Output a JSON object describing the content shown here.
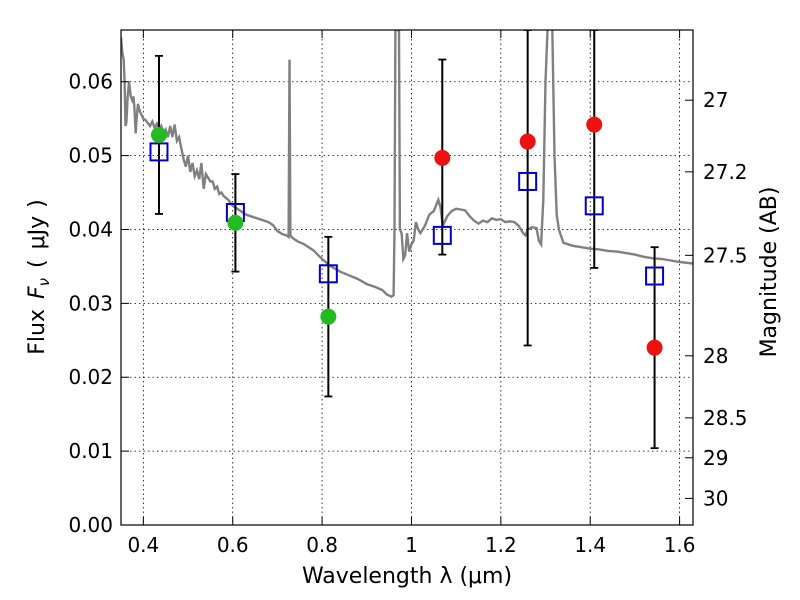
{
  "chart_data": {
    "type": "scatter",
    "xlabel": "Wavelength  λ (μm)",
    "ylabel_parts": [
      "Flux",
      "F",
      "ν",
      "(",
      "μJy",
      ")"
    ],
    "ylabel_right": "Magnitude (AB)",
    "xlim": [
      0.35,
      1.63
    ],
    "ylim": [
      0.0,
      0.067
    ],
    "grid": true,
    "x_ticks": [
      0.4,
      0.6,
      0.8,
      1.0,
      1.2,
      1.4,
      1.6
    ],
    "x_tick_labels": [
      "0.4",
      "0.6",
      "0.8",
      "1",
      "1.2",
      "1.4",
      "1.6"
    ],
    "y_ticks": [
      0.0,
      0.01,
      0.02,
      0.03,
      0.04,
      0.05,
      0.06
    ],
    "y_tick_labels": [
      "0.00",
      "0.01",
      "0.02",
      "0.03",
      "0.04",
      "0.05",
      "0.06"
    ],
    "right_ticks": [
      {
        "flux": 0.0575,
        "label": "27"
      },
      {
        "flux": 0.0478,
        "label": "27.2"
      },
      {
        "flux": 0.0365,
        "label": "27.5"
      },
      {
        "flux": 0.0229,
        "label": "28"
      },
      {
        "flux": 0.0145,
        "label": "28.5"
      },
      {
        "flux": 0.0091,
        "label": "29"
      },
      {
        "flux": 0.0036,
        "label": "30"
      }
    ],
    "series": [
      {
        "role": "model-spectrum",
        "color": "#808080",
        "points": [
          [
            0.35,
            0.066
          ],
          [
            0.353,
            0.064
          ],
          [
            0.356,
            0.063
          ],
          [
            0.358,
            0.06
          ],
          [
            0.36,
            0.054
          ],
          [
            0.362,
            0.0545
          ],
          [
            0.365,
            0.058
          ],
          [
            0.368,
            0.06
          ],
          [
            0.372,
            0.058
          ],
          [
            0.375,
            0.0575
          ],
          [
            0.378,
            0.058
          ],
          [
            0.38,
            0.0565
          ],
          [
            0.383,
            0.053
          ],
          [
            0.385,
            0.055
          ],
          [
            0.388,
            0.057
          ],
          [
            0.392,
            0.056
          ],
          [
            0.396,
            0.0555
          ],
          [
            0.4,
            0.055
          ],
          [
            0.405,
            0.0548
          ],
          [
            0.41,
            0.0544
          ],
          [
            0.415,
            0.054
          ],
          [
            0.42,
            0.0546
          ],
          [
            0.425,
            0.0538
          ],
          [
            0.43,
            0.0543
          ],
          [
            0.435,
            0.0535
          ],
          [
            0.44,
            0.054
          ],
          [
            0.445,
            0.053
          ],
          [
            0.45,
            0.0535
          ],
          [
            0.455,
            0.0525
          ],
          [
            0.46,
            0.054
          ],
          [
            0.465,
            0.0525
          ],
          [
            0.47,
            0.0542
          ],
          [
            0.475,
            0.052
          ],
          [
            0.48,
            0.0525
          ],
          [
            0.485,
            0.051
          ],
          [
            0.49,
            0.0495
          ],
          [
            0.495,
            0.0485
          ],
          [
            0.5,
            0.05
          ],
          [
            0.505,
            0.0478
          ],
          [
            0.51,
            0.049
          ],
          [
            0.515,
            0.0472
          ],
          [
            0.52,
            0.048
          ],
          [
            0.525,
            0.0468
          ],
          [
            0.53,
            0.049
          ],
          [
            0.535,
            0.0455
          ],
          [
            0.54,
            0.0475
          ],
          [
            0.545,
            0.047
          ],
          [
            0.55,
            0.0465
          ],
          [
            0.555,
            0.0465
          ],
          [
            0.56,
            0.0455
          ],
          [
            0.565,
            0.0458
          ],
          [
            0.57,
            0.0448
          ],
          [
            0.575,
            0.045
          ],
          [
            0.58,
            0.0445
          ],
          [
            0.59,
            0.044
          ],
          [
            0.6,
            0.0432
          ],
          [
            0.61,
            0.0428
          ],
          [
            0.62,
            0.0424
          ],
          [
            0.63,
            0.042
          ],
          [
            0.64,
            0.0418
          ],
          [
            0.65,
            0.0416
          ],
          [
            0.66,
            0.0414
          ],
          [
            0.67,
            0.0412
          ],
          [
            0.68,
            0.041
          ],
          [
            0.69,
            0.0406
          ],
          [
            0.7,
            0.0398
          ],
          [
            0.71,
            0.0394
          ],
          [
            0.72,
            0.0392
          ],
          [
            0.725,
            0.039
          ],
          [
            0.727,
            0.063
          ],
          [
            0.729,
            0.0392
          ],
          [
            0.735,
            0.0388
          ],
          [
            0.745,
            0.0384
          ],
          [
            0.76,
            0.038
          ],
          [
            0.78,
            0.0372
          ],
          [
            0.8,
            0.036
          ],
          [
            0.82,
            0.035
          ],
          [
            0.84,
            0.0343
          ],
          [
            0.86,
            0.0338
          ],
          [
            0.88,
            0.0333
          ],
          [
            0.9,
            0.0326
          ],
          [
            0.92,
            0.0322
          ],
          [
            0.935,
            0.0318
          ],
          [
            0.945,
            0.0312
          ],
          [
            0.955,
            0.0309
          ],
          [
            0.96,
            0.0311
          ],
          [
            0.962,
            0.04
          ],
          [
            0.964,
            0.067
          ],
          [
            0.966,
            0.067
          ],
          [
            0.969,
            0.067
          ],
          [
            0.972,
            0.067
          ],
          [
            0.974,
            0.04
          ],
          [
            0.978,
            0.0395
          ],
          [
            0.982,
            0.036
          ],
          [
            0.986,
            0.0365
          ],
          [
            0.99,
            0.0395
          ],
          [
            0.995,
            0.037
          ],
          [
            1.0,
            0.038
          ],
          [
            1.005,
            0.0385
          ],
          [
            1.01,
            0.041
          ],
          [
            1.015,
            0.04
          ],
          [
            1.02,
            0.0395
          ],
          [
            1.03,
            0.0405
          ],
          [
            1.04,
            0.042
          ],
          [
            1.05,
            0.0425
          ],
          [
            1.06,
            0.044
          ],
          [
            1.065,
            0.043
          ],
          [
            1.07,
            0.0405
          ],
          [
            1.08,
            0.0418
          ],
          [
            1.09,
            0.0425
          ],
          [
            1.1,
            0.0428
          ],
          [
            1.11,
            0.0427
          ],
          [
            1.12,
            0.0426
          ],
          [
            1.13,
            0.0418
          ],
          [
            1.14,
            0.0412
          ],
          [
            1.15,
            0.0408
          ],
          [
            1.16,
            0.0412
          ],
          [
            1.17,
            0.041
          ],
          [
            1.18,
            0.0415
          ],
          [
            1.19,
            0.0413
          ],
          [
            1.2,
            0.0414
          ],
          [
            1.21,
            0.041
          ],
          [
            1.22,
            0.0411
          ],
          [
            1.23,
            0.041
          ],
          [
            1.24,
            0.0405
          ],
          [
            1.25,
            0.0395
          ],
          [
            1.255,
            0.0392
          ],
          [
            1.26,
            0.04
          ],
          [
            1.27,
            0.0403
          ],
          [
            1.28,
            0.0402
          ],
          [
            1.285,
            0.0385
          ],
          [
            1.29,
            0.038
          ],
          [
            1.295,
            0.044
          ],
          [
            1.3,
            0.06
          ],
          [
            1.305,
            0.068
          ],
          [
            1.315,
            0.068
          ],
          [
            1.32,
            0.05
          ],
          [
            1.325,
            0.042
          ],
          [
            1.33,
            0.04
          ],
          [
            1.34,
            0.0382
          ],
          [
            1.36,
            0.0378
          ],
          [
            1.38,
            0.0376
          ],
          [
            1.4,
            0.0374
          ],
          [
            1.42,
            0.0373
          ],
          [
            1.44,
            0.0371
          ],
          [
            1.46,
            0.037
          ],
          [
            1.48,
            0.0368
          ],
          [
            1.5,
            0.0366
          ],
          [
            1.52,
            0.0363
          ],
          [
            1.54,
            0.0361
          ],
          [
            1.56,
            0.036
          ],
          [
            1.58,
            0.0358
          ],
          [
            1.6,
            0.0356
          ],
          [
            1.63,
            0.0354
          ]
        ]
      },
      {
        "role": "photometry-errorbars",
        "color": "#000000",
        "points": [
          {
            "x": 0.435,
            "y": 0.0505,
            "ylo": 0.0421,
            "yhi": 0.0635
          },
          {
            "x": 0.606,
            "y": 0.0423,
            "ylo": 0.0343,
            "yhi": 0.0475
          },
          {
            "x": 0.814,
            "y": 0.034,
            "ylo": 0.0174,
            "yhi": 0.039
          },
          {
            "x": 1.069,
            "y": 0.0392,
            "ylo": 0.0366,
            "yhi": 0.063
          },
          {
            "x": 1.26,
            "y": 0.0465,
            "ylo": 0.0243,
            "yhi": 0.067
          },
          {
            "x": 1.409,
            "y": 0.0432,
            "ylo": 0.0348,
            "yhi": 0.067
          },
          {
            "x": 1.544,
            "y": 0.0337,
            "ylo": 0.0104,
            "yhi": 0.0376
          }
        ]
      },
      {
        "role": "model-band-flux",
        "color": "#0000cc",
        "marker": "open-square",
        "x": [
          0.435,
          0.606,
          0.814,
          1.069,
          1.26,
          1.409,
          1.544
        ],
        "y": [
          0.0505,
          0.0423,
          0.034,
          0.0392,
          0.0465,
          0.0432,
          0.0337
        ]
      },
      {
        "role": "detected-flux",
        "color": "#22bb22",
        "marker": "filled-circle",
        "x": [
          0.435,
          0.606,
          0.814
        ],
        "y": [
          0.0528,
          0.0409,
          0.0282
        ]
      },
      {
        "role": "upper-limit-flux",
        "color": "#ee1111",
        "marker": "filled-circle",
        "x": [
          1.069,
          1.26,
          1.409,
          1.544
        ],
        "y": [
          0.0497,
          0.0519,
          0.0542,
          0.024
        ]
      }
    ]
  }
}
